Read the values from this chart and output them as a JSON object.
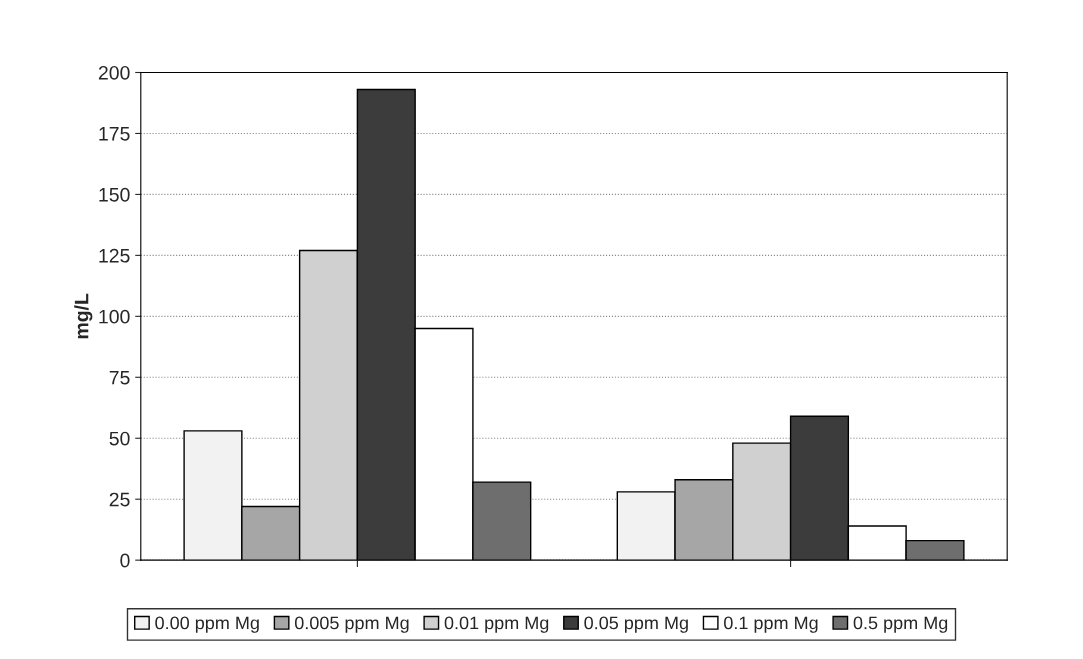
{
  "chart_data": {
    "type": "bar",
    "ylabel": "mg/L",
    "categories": [
      null,
      null
    ],
    "series": [
      {
        "name": "0.00 ppm Mg",
        "color": "#f2f2f2",
        "values": [
          53,
          28
        ]
      },
      {
        "name": "0.005 ppm Mg",
        "color": "#a6a6a6",
        "values": [
          22,
          33
        ]
      },
      {
        "name": "0.01 ppm Mg",
        "color": "#d0d0d0",
        "values": [
          127,
          48
        ]
      },
      {
        "name": "0.05 ppm Mg",
        "color": "#3c3c3c",
        "values": [
          193,
          59
        ]
      },
      {
        "name": "0.1 ppm Mg",
        "color": "#ffffff",
        "values": [
          95,
          14
        ]
      },
      {
        "name": "0.5 ppm Mg",
        "color": "#6e6e6e",
        "values": [
          32,
          8
        ]
      }
    ],
    "ylim": [
      0,
      200
    ],
    "yticks": [
      0,
      25,
      50,
      75,
      100,
      125,
      150,
      175,
      200
    ],
    "grid": "y",
    "legend": "bottom"
  }
}
